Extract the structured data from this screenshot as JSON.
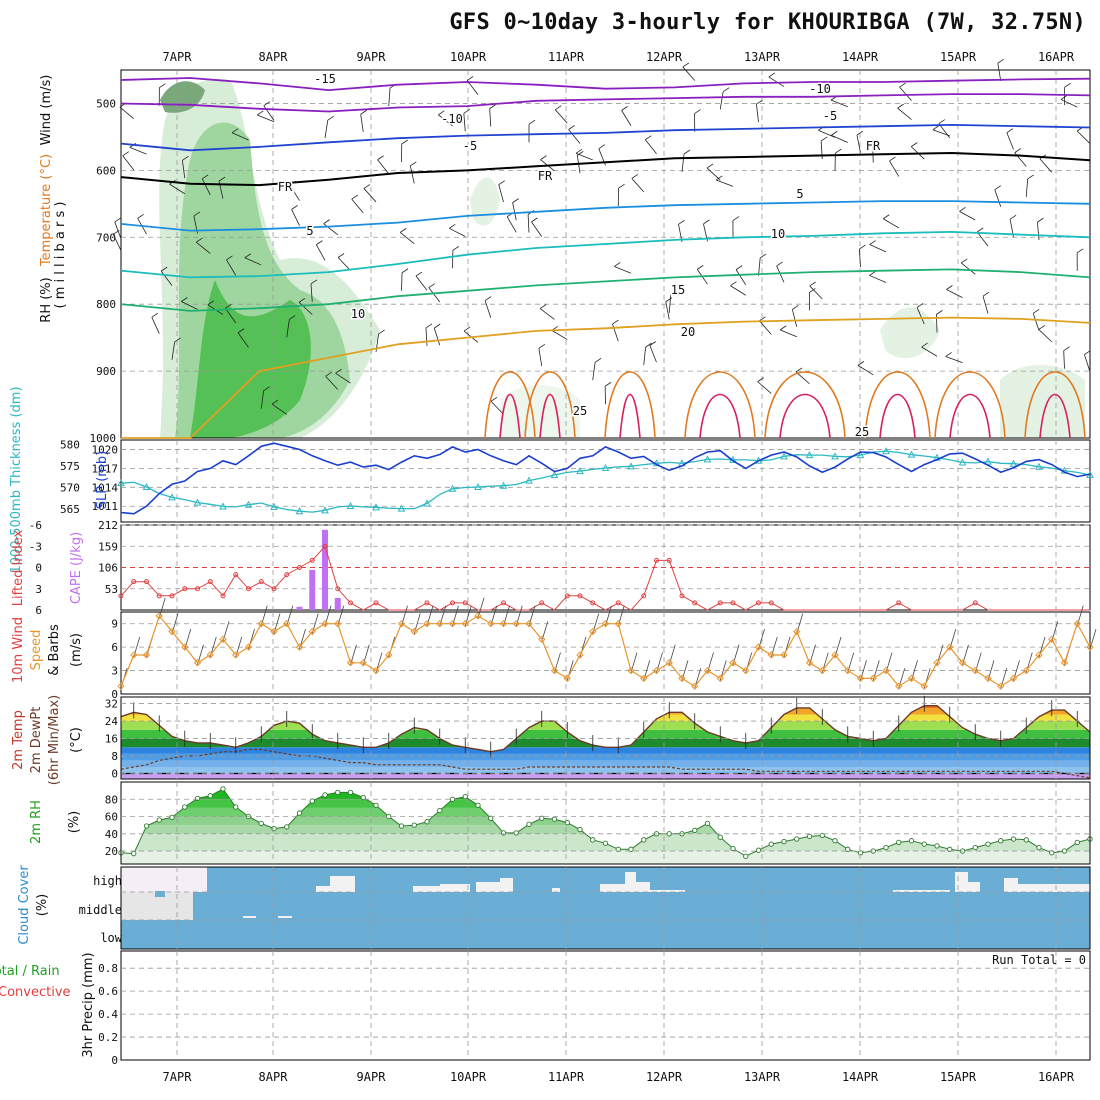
{
  "title": "GFS 0~10day 3-hourly for KHOURIBGA (7W, 32.75N)",
  "date_ticks": [
    "7APR",
    "8APR",
    "9APR",
    "10APR",
    "11APR",
    "12APR",
    "13APR",
    "14APR",
    "15APR",
    "16APR"
  ],
  "chart_data": [
    {
      "type": "contour",
      "panel": "upper_air",
      "ylabel_parts": [
        "RH (%)",
        "Temperature (°C)",
        "Wind (m/s)"
      ],
      "ylabel_unit": "( m i l l i b a r s )",
      "y_ticks": [
        500,
        600,
        700,
        800,
        900,
        1000
      ],
      "ylim": [
        1000,
        450
      ],
      "labels": {
        "fr": "FR",
        "t_m15": "-15",
        "t_m10": "-10",
        "t_m5": "-5",
        "t_5": "5",
        "t_10": "10",
        "t_15": "15",
        "t_20": "20",
        "t_25": "25"
      },
      "isotherms": [
        {
          "label": "-15",
          "color": "#8a1fbf",
          "pressure": [
            465,
            462,
            470,
            480,
            472,
            468,
            472,
            478,
            476,
            470,
            468,
            468,
            466,
            464,
            463
          ]
        },
        {
          "label": "-10",
          "color": "#8a1fbf",
          "pressure": [
            500,
            502,
            508,
            512,
            506,
            504,
            496,
            494,
            492,
            490,
            490,
            488,
            486,
            486,
            488
          ]
        },
        {
          "label": "-5",
          "color": "#2044d0",
          "pressure": [
            560,
            570,
            565,
            558,
            552,
            548,
            546,
            544,
            540,
            538,
            536,
            534,
            532,
            534,
            536
          ]
        },
        {
          "label": "FR",
          "color": "#000000",
          "pressure": [
            610,
            620,
            622,
            614,
            604,
            600,
            594,
            588,
            582,
            580,
            578,
            576,
            574,
            578,
            585
          ]
        },
        {
          "label": "5",
          "color": "#1b8ee0",
          "pressure": [
            680,
            690,
            688,
            684,
            678,
            668,
            662,
            656,
            652,
            650,
            648,
            646,
            646,
            648,
            650
          ]
        },
        {
          "label": "10",
          "color": "#1abcbc",
          "pressure": [
            750,
            760,
            758,
            752,
            740,
            726,
            716,
            710,
            704,
            700,
            698,
            694,
            692,
            696,
            700
          ]
        },
        {
          "label": "15",
          "color": "#20b070",
          "pressure": [
            800,
            810,
            806,
            800,
            788,
            780,
            772,
            766,
            760,
            756,
            752,
            750,
            748,
            752,
            760
          ]
        },
        {
          "label": "20",
          "color": "#e0a020",
          "pressure": [
            1000,
            1000,
            900,
            880,
            860,
            850,
            840,
            836,
            830,
            826,
            824,
            822,
            820,
            822,
            828
          ]
        }
      ]
    },
    {
      "type": "line",
      "panel": "slp_thickness",
      "ylabel_left": "1000-500mb Thickness (dm)",
      "ylabel_right": "SLP (mb)",
      "left_ticks": [
        565,
        570,
        575,
        580
      ],
      "right_ticks": [
        1011,
        1014,
        1017,
        1020
      ],
      "series": [
        {
          "name": "SLP (mb)",
          "color": "#1a3fd0",
          "values": [
            1010,
            1009.8,
            1011,
            1013,
            1014.5,
            1015,
            1016.5,
            1017,
            1018.2,
            1017.6,
            1019,
            1020.5,
            1021,
            1020.5,
            1020,
            1019,
            1018.2,
            1017.5,
            1018,
            1017.2,
            1017.5,
            1016.8,
            1018,
            1019,
            1018.6,
            1019.2,
            1020.4,
            1019.6,
            1020,
            1019,
            1018.2,
            1017.6,
            1019,
            1017.8,
            1016.5,
            1017,
            1018.6,
            1019,
            1020.4,
            1019.6,
            1018.6,
            1018.9,
            1017.6,
            1016.7,
            1017.4,
            1018.7,
            1019.6,
            1019.8,
            1018.2,
            1017,
            1018.2,
            1019.1,
            1019.6,
            1018.8,
            1017.4,
            1016.4,
            1017.2,
            1018.5,
            1019.6,
            1019.5,
            1018.8,
            1017.6,
            1016.5,
            1017.6,
            1018.4,
            1019.3,
            1019.4,
            1018.5,
            1017.5,
            1016.4,
            1017.1,
            1018.1,
            1018.4,
            1017.6,
            1016.4,
            1015.7,
            1016.1
          ]
        },
        {
          "name": "1000-500mb Thickness (dm)",
          "color": "#2cb8c4",
          "values": [
            571,
            571.2,
            570.1,
            568.6,
            567.7,
            567.2,
            566.5,
            566.1,
            565.6,
            565.5,
            566,
            566.4,
            565.5,
            564.9,
            564.5,
            564.3,
            564.7,
            565.5,
            565.7,
            565.5,
            565.4,
            565.2,
            565.1,
            565.1,
            566.3,
            568.4,
            569.7,
            570,
            570.1,
            570.3,
            570.4,
            570.7,
            571.6,
            572.2,
            572.9,
            573.5,
            573.8,
            574.2,
            574.5,
            574.8,
            574.9,
            575.3,
            575.6,
            575.8,
            575.6,
            576,
            576.5,
            576.6,
            576.4,
            576.4,
            576.2,
            576.4,
            577.2,
            577.6,
            577.5,
            577.5,
            577.2,
            577.1,
            577.5,
            578.2,
            578.4,
            578.1,
            577.6,
            577.3,
            576.9,
            576.4,
            575.8,
            575.7,
            576,
            575.6,
            575.5,
            575.3,
            574.8,
            574.5,
            573.9,
            573.5,
            572.9
          ]
        }
      ]
    },
    {
      "type": "bar_line",
      "panel": "cape_li",
      "ylabel_left": "Lifted Index",
      "ylabel_right": "CAPE (J/kg)",
      "li_ticks": [
        -6,
        -3,
        0,
        3,
        6
      ],
      "cape_ticks": [
        53,
        106,
        159,
        212
      ],
      "series": [
        {
          "name": "Lifted Index",
          "color": "#e04040",
          "values": [
            4,
            2,
            2,
            4,
            4,
            3,
            3,
            2,
            4,
            1,
            3,
            2,
            3,
            1,
            0,
            -1,
            -3,
            3,
            5,
            6,
            5,
            6,
            6,
            6,
            5,
            6,
            5,
            5,
            6,
            6,
            5,
            6,
            6,
            5,
            6,
            4,
            4,
            5,
            6,
            5,
            6,
            4,
            -1,
            -1,
            4,
            5,
            6,
            5,
            5,
            6,
            5,
            5,
            6,
            6,
            6,
            6,
            6,
            6,
            6,
            6,
            6,
            5,
            6,
            6,
            6,
            6,
            6,
            5,
            6,
            6,
            6,
            6,
            6,
            6,
            6,
            6,
            6
          ]
        },
        {
          "name": "CAPE (J/kg)",
          "color": "#c070f0",
          "values": [
            0,
            0,
            0,
            0,
            0,
            0,
            0,
            0,
            0,
            0,
            0,
            0,
            0,
            0,
            8,
            100,
            200,
            30,
            0,
            0,
            0,
            0,
            0,
            0,
            0,
            0,
            0,
            0,
            0,
            0,
            0,
            0,
            0,
            0,
            0,
            0,
            0,
            0,
            0,
            0,
            0,
            0,
            0,
            0,
            0,
            0,
            0,
            0,
            0,
            0,
            0,
            0,
            0,
            0,
            0,
            0,
            0,
            0,
            0,
            0,
            0,
            0,
            0,
            0,
            0,
            0,
            0,
            0,
            0,
            0,
            0,
            0,
            0,
            0,
            0,
            0,
            0
          ]
        }
      ]
    },
    {
      "type": "line",
      "panel": "wind10m",
      "ylabel_left": "10m Wind Speed & Barbs",
      "ylabel_unit": "(m/s)",
      "ticks": [
        0,
        3,
        6,
        9
      ],
      "series": [
        {
          "name": "10m Wind Speed",
          "color": "#e8952e",
          "values": [
            1,
            5,
            5,
            10,
            8,
            6,
            4,
            5,
            7,
            5,
            6,
            9,
            8,
            9,
            6,
            8,
            9,
            9,
            4,
            4,
            3,
            5,
            9,
            8,
            9,
            9,
            9,
            9,
            10,
            9,
            9,
            9,
            9,
            7,
            3,
            2,
            5,
            8,
            9,
            9,
            3,
            2,
            3,
            4,
            2,
            1,
            3,
            2,
            4,
            3,
            6,
            5,
            5,
            8,
            4,
            3,
            5,
            3,
            2,
            2,
            3,
            1,
            2,
            1,
            4,
            6,
            4,
            3,
            2,
            1,
            2,
            3,
            5,
            7,
            4,
            9,
            6
          ]
        }
      ]
    },
    {
      "type": "area",
      "panel": "temp2m",
      "ylabel_left": "2m Temp 2m DewPt (6hr Min/Max)",
      "ylabel_unit": "(°C)",
      "ticks": [
        0,
        8,
        16,
        24,
        32
      ],
      "series": [
        {
          "name": "2m Temp",
          "values": [
            26,
            28,
            27,
            22,
            17,
            15,
            14,
            14,
            13,
            12,
            14,
            17,
            22,
            24,
            23,
            18,
            15,
            14,
            13,
            12,
            12,
            14,
            18,
            21,
            20,
            16,
            13,
            12,
            11,
            10,
            11,
            16,
            21,
            24,
            24,
            19,
            15,
            13,
            12,
            12,
            13,
            19,
            25,
            28,
            28,
            23,
            19,
            17,
            15,
            14,
            15,
            21,
            27,
            30,
            30,
            25,
            20,
            17,
            16,
            15,
            16,
            22,
            28,
            31,
            31,
            26,
            21,
            18,
            16,
            15,
            16,
            21,
            26,
            29,
            29,
            24,
            19
          ]
        },
        {
          "name": "2m DewPt",
          "values": [
            2,
            3,
            4,
            6,
            7,
            8,
            8,
            9,
            10,
            10,
            11,
            11,
            10,
            9,
            8,
            8,
            7,
            6,
            5,
            5,
            4,
            4,
            4,
            4,
            4,
            4,
            3,
            2,
            2,
            2,
            2,
            2,
            3,
            3,
            3,
            3,
            3,
            3,
            3,
            3,
            3,
            3,
            3,
            3,
            2,
            2,
            2,
            2,
            2,
            2,
            1,
            1,
            1,
            1,
            1,
            1,
            1,
            1,
            1,
            1,
            1,
            1,
            1,
            1,
            1,
            1,
            1,
            1,
            1,
            1,
            1,
            1,
            1,
            1,
            0,
            -1,
            -2
          ]
        }
      ]
    },
    {
      "type": "area",
      "panel": "rh2m",
      "ylabel_left": "2m RH",
      "ylabel_unit": "(%)",
      "ticks": [
        20,
        40,
        60,
        80
      ],
      "series": [
        {
          "name": "2m RH",
          "color": "#30b030",
          "values": [
            18,
            17,
            49,
            56,
            59,
            71,
            81,
            84,
            92,
            71,
            60,
            52,
            46,
            48,
            64,
            78,
            85,
            88,
            88,
            82,
            73,
            60,
            49,
            50,
            54,
            67,
            80,
            83,
            73,
            58,
            41,
            41,
            51,
            58,
            57,
            53,
            45,
            33,
            29,
            22,
            22,
            33,
            40,
            40,
            40,
            44,
            52,
            36,
            23,
            14,
            21,
            28,
            31,
            34,
            37,
            38,
            32,
            22,
            18,
            20,
            24,
            30,
            32,
            28,
            26,
            22,
            20,
            24,
            28,
            32,
            34,
            33,
            24,
            18,
            20,
            30,
            34
          ]
        }
      ]
    },
    {
      "type": "heatmap",
      "panel": "cloud_cover",
      "ylabel_left": "Cloud Cover",
      "ylabel_unit": "(%)",
      "row_labels": [
        "high",
        "middle",
        "low"
      ]
    },
    {
      "type": "bar",
      "panel": "precip",
      "ylabel_left_a": "Total / Rain",
      "ylabel_left_b": "Convective",
      "ylabel_unit": "3hr Precip (mm)",
      "ticks": [
        0,
        0.2,
        0.4,
        0.6,
        0.8
      ],
      "run_total": "Run Total = 0",
      "values": []
    }
  ],
  "colors": {
    "slp": "#1a3fd0",
    "thickness": "#2cb8c4",
    "li": "#e04040",
    "cape": "#c070f0",
    "wind": "#e8952e",
    "rh_green": "#3fbf3f",
    "cloud_blue": "#6aaed6",
    "grid": "#aaaaaa"
  }
}
